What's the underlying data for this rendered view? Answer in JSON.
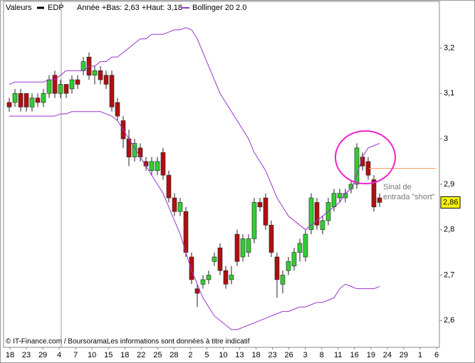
{
  "chart_data": {
    "type": "candlestick",
    "header": {
      "label": "Valeurs",
      "series_name": "EDP",
      "range_text": "Année +Bas: 2,63 +Haut: 3,18",
      "indicator_name": "Bollinger 20 2.0"
    },
    "footer": "© IT-Finance.com / BoursoramaLes informations sont données à titre indicatif",
    "annotation": [
      "Sinal de",
      "entrada \"short\""
    ],
    "last_price": {
      "value": 2.86,
      "label": "2,86"
    },
    "reference_line": {
      "value": 2.935,
      "color": "#ff9966"
    },
    "up_color": "#33cc33",
    "down_color": "#b01010",
    "x_labels": [
      "18",
      "23",
      "29",
      "4",
      "7",
      "10",
      "15",
      "18",
      "22",
      "25",
      "28",
      "2",
      "5",
      "10",
      "13",
      "18",
      "23",
      "26",
      "3",
      "8",
      "11",
      "16",
      "19",
      "24",
      "29",
      "1",
      "6"
    ],
    "ylim": [
      2.541,
      3.3056
    ],
    "yticks": [
      {
        "value": 2.6,
        "label": "2,6"
      },
      {
        "value": 2.7,
        "label": "2,7"
      },
      {
        "value": 2.8,
        "label": "2,8"
      },
      {
        "value": 2.9,
        "label": "2,9"
      },
      {
        "value": 3.0,
        "label": "3"
      },
      {
        "value": 3.1,
        "label": "3,1"
      },
      {
        "value": 3.2,
        "label": "3,2"
      }
    ],
    "candles": [
      {
        "open": 3.08,
        "high": 3.09,
        "low": 3.06,
        "close": 3.07
      },
      {
        "open": 3.08,
        "high": 3.11,
        "low": 3.07,
        "close": 3.1
      },
      {
        "open": 3.1,
        "high": 3.11,
        "low": 3.06,
        "close": 3.07
      },
      {
        "open": 3.1,
        "high": 3.1,
        "low": 3.06,
        "close": 3.07
      },
      {
        "open": 3.07,
        "high": 3.1,
        "low": 3.06,
        "close": 3.09
      },
      {
        "open": 3.09,
        "high": 3.1,
        "low": 3.07,
        "close": 3.08
      },
      {
        "open": 3.08,
        "high": 3.11,
        "low": 3.07,
        "close": 3.1
      },
      {
        "open": 3.1,
        "high": 3.14,
        "low": 3.09,
        "close": 3.13
      },
      {
        "open": 3.14,
        "high": 3.15,
        "low": 3.09,
        "close": 3.1
      },
      {
        "open": 3.1,
        "high": 3.13,
        "low": 3.09,
        "close": 3.12
      },
      {
        "open": 3.12,
        "high": 3.12,
        "low": 3.09,
        "close": 3.1
      },
      {
        "open": 3.11,
        "high": 3.14,
        "low": 3.1,
        "close": 3.13
      },
      {
        "open": 3.13,
        "high": 3.14,
        "low": 3.11,
        "close": 3.12
      },
      {
        "open": 3.15,
        "high": 3.18,
        "low": 3.14,
        "close": 3.17
      },
      {
        "open": 3.18,
        "high": 3.19,
        "low": 3.13,
        "close": 3.14
      },
      {
        "open": 3.14,
        "high": 3.16,
        "low": 3.12,
        "close": 3.15
      },
      {
        "open": 3.15,
        "high": 3.16,
        "low": 3.12,
        "close": 3.13
      },
      {
        "open": 3.14,
        "high": 3.15,
        "low": 3.11,
        "close": 3.12
      },
      {
        "open": 3.14,
        "high": 3.15,
        "low": 3.06,
        "close": 3.07
      },
      {
        "open": 3.08,
        "high": 3.09,
        "low": 3.04,
        "close": 3.05
      },
      {
        "open": 3.04,
        "high": 3.05,
        "low": 2.98,
        "close": 3.0
      },
      {
        "open": 3.0,
        "high": 3.02,
        "low": 2.94,
        "close": 2.96
      },
      {
        "open": 2.96,
        "high": 3.0,
        "low": 2.95,
        "close": 2.99
      },
      {
        "open": 2.98,
        "high": 2.99,
        "low": 2.95,
        "close": 2.96
      },
      {
        "open": 2.95,
        "high": 2.96,
        "low": 2.93,
        "close": 2.94
      },
      {
        "open": 2.93,
        "high": 2.96,
        "low": 2.92,
        "close": 2.95
      },
      {
        "open": 2.93,
        "high": 2.96,
        "low": 2.92,
        "close": 2.95
      },
      {
        "open": 2.97,
        "high": 2.98,
        "low": 2.91,
        "close": 2.92
      },
      {
        "open": 2.92,
        "high": 2.93,
        "low": 2.86,
        "close": 2.87
      },
      {
        "open": 2.87,
        "high": 2.88,
        "low": 2.83,
        "close": 2.84
      },
      {
        "open": 2.84,
        "high": 2.87,
        "low": 2.83,
        "close": 2.86
      },
      {
        "open": 2.84,
        "high": 2.85,
        "low": 2.74,
        "close": 2.75
      },
      {
        "open": 2.74,
        "high": 2.75,
        "low": 2.68,
        "close": 2.69
      },
      {
        "open": 2.67,
        "high": 2.68,
        "low": 2.63,
        "close": 2.66
      },
      {
        "open": 2.68,
        "high": 2.7,
        "low": 2.67,
        "close": 2.69
      },
      {
        "open": 2.69,
        "high": 2.71,
        "low": 2.68,
        "close": 2.7
      },
      {
        "open": 2.73,
        "high": 2.75,
        "low": 2.72,
        "close": 2.74
      },
      {
        "open": 2.76,
        "high": 2.77,
        "low": 2.7,
        "close": 2.71
      },
      {
        "open": 2.71,
        "high": 2.72,
        "low": 2.67,
        "close": 2.68
      },
      {
        "open": 2.69,
        "high": 2.72,
        "low": 2.68,
        "close": 2.7
      },
      {
        "open": 2.79,
        "high": 2.8,
        "low": 2.72,
        "close": 2.73
      },
      {
        "open": 2.74,
        "high": 2.79,
        "low": 2.73,
        "close": 2.78
      },
      {
        "open": 2.75,
        "high": 2.79,
        "low": 2.74,
        "close": 2.78
      },
      {
        "open": 2.78,
        "high": 2.87,
        "low": 2.77,
        "close": 2.86
      },
      {
        "open": 2.86,
        "high": 2.87,
        "low": 2.84,
        "close": 2.85
      },
      {
        "open": 2.87,
        "high": 2.88,
        "low": 2.8,
        "close": 2.81
      },
      {
        "open": 2.81,
        "high": 2.82,
        "low": 2.74,
        "close": 2.75
      },
      {
        "open": 2.74,
        "high": 2.75,
        "low": 2.65,
        "close": 2.69
      },
      {
        "open": 2.68,
        "high": 2.71,
        "low": 2.66,
        "close": 2.7
      },
      {
        "open": 2.71,
        "high": 2.74,
        "low": 2.7,
        "close": 2.73
      },
      {
        "open": 2.72,
        "high": 2.76,
        "low": 2.71,
        "close": 2.75
      },
      {
        "open": 2.75,
        "high": 2.78,
        "low": 2.73,
        "close": 2.77
      },
      {
        "open": 2.74,
        "high": 2.8,
        "low": 2.73,
        "close": 2.79
      },
      {
        "open": 2.8,
        "high": 2.88,
        "low": 2.79,
        "close": 2.87
      },
      {
        "open": 2.86,
        "high": 2.87,
        "low": 2.8,
        "close": 2.81
      },
      {
        "open": 2.8,
        "high": 2.83,
        "low": 2.79,
        "close": 2.82
      },
      {
        "open": 2.82,
        "high": 2.87,
        "low": 2.81,
        "close": 2.86
      },
      {
        "open": 2.85,
        "high": 2.89,
        "low": 2.84,
        "close": 2.88
      },
      {
        "open": 2.87,
        "high": 2.89,
        "low": 2.86,
        "close": 2.88
      },
      {
        "open": 2.87,
        "high": 2.89,
        "low": 2.86,
        "close": 2.88
      },
      {
        "open": 2.89,
        "high": 2.91,
        "low": 2.88,
        "close": 2.9
      },
      {
        "open": 2.9,
        "high": 2.99,
        "low": 2.89,
        "close": 2.98
      },
      {
        "open": 2.96,
        "high": 2.97,
        "low": 2.93,
        "close": 2.94
      },
      {
        "open": 2.95,
        "high": 2.96,
        "low": 2.91,
        "close": 2.92
      },
      {
        "open": 2.91,
        "high": 2.92,
        "low": 2.84,
        "close": 2.85
      },
      {
        "open": 2.87,
        "high": 2.88,
        "low": 2.85,
        "close": 2.86
      }
    ],
    "series": [
      {
        "name": "Bollinger 20 2.0",
        "color": "#9933cc",
        "values": [
          3.12,
          3.125,
          3.125,
          3.125,
          3.125,
          3.125,
          3.125,
          3.13,
          3.13,
          3.14,
          3.15,
          3.15,
          3.15,
          3.15,
          3.16,
          3.16,
          3.17,
          3.17,
          3.18,
          3.18,
          3.19,
          3.2,
          3.21,
          3.22,
          3.22,
          3.23,
          3.23,
          3.23,
          3.235,
          3.24,
          3.24,
          3.245,
          3.24,
          3.22,
          3.19,
          3.16,
          3.13,
          3.1,
          3.08,
          3.06,
          3.04,
          3.02,
          3.0,
          2.97,
          2.95,
          2.93,
          2.9,
          2.87,
          2.85,
          2.83,
          2.82,
          2.81,
          2.8,
          2.81,
          2.82,
          2.83,
          2.84,
          2.85,
          2.86,
          2.88,
          2.89,
          2.92,
          2.96,
          2.98,
          2.985,
          2.99
        ]
      },
      {
        "color": "#9933cc",
        "values": [
          3.05,
          3.05,
          3.05,
          3.05,
          3.05,
          3.05,
          3.05,
          3.05,
          3.05,
          3.055,
          3.055,
          3.06,
          3.06,
          3.06,
          3.06,
          3.06,
          3.06,
          3.055,
          3.05,
          3.04,
          3.02,
          3.0,
          2.98,
          2.96,
          2.94,
          2.92,
          2.9,
          2.88,
          2.85,
          2.82,
          2.79,
          2.75,
          2.71,
          2.68,
          2.65,
          2.63,
          2.61,
          2.6,
          2.59,
          2.58,
          2.58,
          2.585,
          2.59,
          2.595,
          2.6,
          2.605,
          2.61,
          2.615,
          2.62,
          2.62,
          2.625,
          2.63,
          2.63,
          2.635,
          2.64,
          2.64,
          2.645,
          2.65,
          2.67,
          2.68,
          2.675,
          2.67,
          2.67,
          2.67,
          2.67,
          2.675
        ]
      }
    ]
  }
}
